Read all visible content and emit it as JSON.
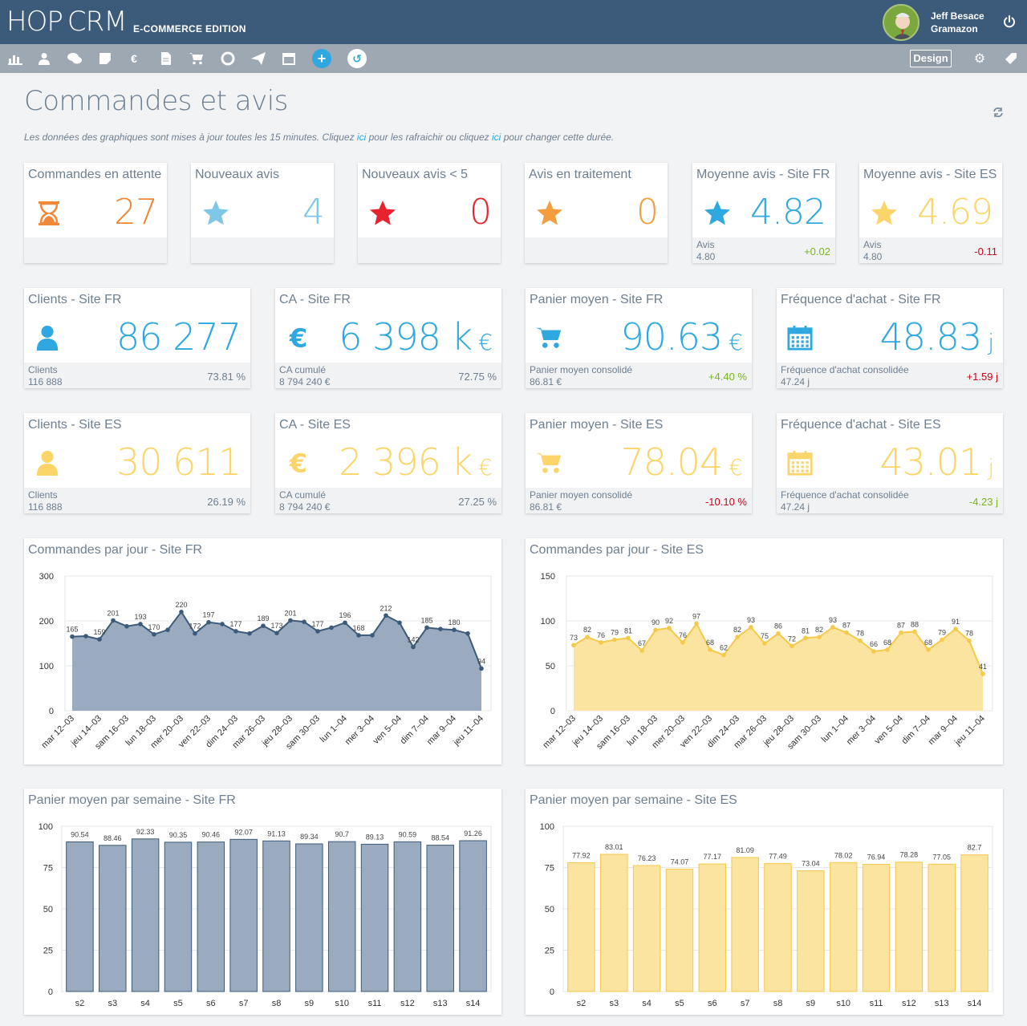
{
  "header": {
    "logo_hop": "HOP",
    "logo_crm": "CRM",
    "edition": "E-COMMERCE EDITION",
    "user_name": "Jeff Besace",
    "company": "Gramazon",
    "design_label": "Design"
  },
  "toolbar_icons": [
    "chart-icon",
    "user-icon",
    "chat-icon",
    "note-icon",
    "euro-icon",
    "document-icon",
    "cart-icon",
    "lifebuoy-icon",
    "send-icon",
    "calendar-icon",
    "add-icon",
    "history-icon"
  ],
  "page": {
    "title": "Commandes et avis",
    "info_1": "Les données des graphiques sont mises à jour toutes les 15 minutes. Cliquez ",
    "info_link1": "ici",
    "info_2": " pour les rafraichir ou cliquez ",
    "info_link2": "ici",
    "info_3": " pour changer cette durée."
  },
  "kpi_row1": [
    {
      "title": "Commandes en attente",
      "value": "27",
      "color": "#f0883a",
      "icon": "hourglass-icon"
    },
    {
      "title": "Nouveaux avis",
      "value": "4",
      "color": "#7ec7e6",
      "icon": "star-icon"
    },
    {
      "title": "Nouveaux avis < 5",
      "value": "0",
      "color": "#e8232f",
      "icon": "star-icon"
    },
    {
      "title": "Avis en traitement",
      "value": "0",
      "color": "#f49d3e",
      "icon": "star-icon"
    },
    {
      "title": "Moyenne avis - Site FR",
      "value": "4.82",
      "color": "#2fa8e0",
      "icon": "star-icon",
      "foot_label": "Avis",
      "foot_value": "4.80",
      "delta": "+0.02",
      "delta_color": "#7ab51d"
    },
    {
      "title": "Moyenne avis - Site ES",
      "value": "4.69",
      "color": "#fbd56a",
      "icon": "star-icon",
      "foot_label": "Avis",
      "foot_value": "4.80",
      "delta": "-0.11",
      "delta_color": "#d0021b"
    }
  ],
  "kpi_fr": [
    {
      "title": "Clients - Site FR",
      "value": "86 277",
      "unit": "",
      "icon": "user-icon",
      "foot_label": "Clients",
      "foot_value": "116 888",
      "delta": "73.81 %",
      "delta_color": "#6e7f90"
    },
    {
      "title": "CA - Site FR",
      "value": "6 398 k",
      "unit": "€",
      "icon": "euro-icon",
      "foot_label": "CA cumulé",
      "foot_value": "8 794 240 €",
      "delta": "72.75 %",
      "delta_color": "#6e7f90"
    },
    {
      "title": "Panier moyen - Site FR",
      "value": "90.63",
      "unit": "€",
      "icon": "cart-icon",
      "foot_label": "Panier moyen consolidé",
      "foot_value": "86.81 €",
      "delta": "+4.40 %",
      "delta_color": "#7ab51d"
    },
    {
      "title": "Fréquence d'achat - Site FR",
      "value": "48.83",
      "unit": "j",
      "icon": "calendar-icon",
      "foot_label": "Fréquence d'achat consolidée",
      "foot_value": "47.24 j",
      "delta": "+1.59 j",
      "delta_color": "#d0021b"
    }
  ],
  "kpi_es": [
    {
      "title": "Clients - Site ES",
      "value": "30 611",
      "unit": "",
      "icon": "user-icon",
      "foot_label": "Clients",
      "foot_value": "116 888",
      "delta": "26.19 %",
      "delta_color": "#6e7f90"
    },
    {
      "title": "CA - Site ES",
      "value": "2 396 k",
      "unit": "€",
      "icon": "euro-icon",
      "foot_label": "CA cumulé",
      "foot_value": "8 794 240 €",
      "delta": "27.25 %",
      "delta_color": "#6e7f90"
    },
    {
      "title": "Panier moyen - Site ES",
      "value": "78.04",
      "unit": "€",
      "icon": "cart-icon",
      "foot_label": "Panier moyen consolidé",
      "foot_value": "86.81 €",
      "delta": "-10.10 %",
      "delta_color": "#d0021b"
    },
    {
      "title": "Fréquence d'achat - Site ES",
      "value": "43.01",
      "unit": "j",
      "icon": "calendar-icon",
      "foot_label": "Fréquence d'achat consolidée",
      "foot_value": "47.24 j",
      "delta": "-4.23 j",
      "delta_color": "#7ab51d"
    }
  ],
  "colors": {
    "fr": "#2fa8e0",
    "es": "#fbd56a",
    "fr_chart_fill": "#9aabbf",
    "fr_chart_line": "#3c5a7a",
    "es_chart_fill": "#fbe3a0",
    "es_chart_line": "#f5c94a"
  },
  "chart_data": [
    {
      "type": "area",
      "title": "Commandes par jour - Site FR",
      "ylim": [
        0,
        300
      ],
      "yticks": [
        0,
        100,
        200,
        300
      ],
      "x_labels": [
        "mar 12–03",
        "jeu 14–03",
        "sam 16–03",
        "lun 18–03",
        "mer 20–03",
        "ven 22–03",
        "dim 24–03",
        "mar 26–03",
        "jeu 28–03",
        "sam 30–03",
        "lun 1–04",
        "mer 3–04",
        "ven 5–04",
        "dim 7–04",
        "mar 9–04",
        "jeu 11–04"
      ],
      "values": [
        165,
        166,
        159,
        201,
        188,
        193,
        170,
        180,
        220,
        172,
        197,
        193,
        177,
        172,
        189,
        173,
        201,
        198,
        177,
        185,
        196,
        168,
        168,
        212,
        196,
        142,
        185,
        182,
        180,
        172,
        94
      ],
      "labels": {
        "0": "165",
        "2": "159",
        "3": "201",
        "5": "193",
        "6": "170",
        "8": "220",
        "9": "172",
        "10": "197",
        "12": "177",
        "14": "189",
        "15": "173",
        "16": "201",
        "18": "177",
        "20": "196",
        "21": "168",
        "23": "212",
        "25": "142",
        "26": "185",
        "28": "180",
        "30": "94"
      }
    },
    {
      "type": "area",
      "title": "Commandes par jour - Site ES",
      "ylim": [
        0,
        150
      ],
      "yticks": [
        0,
        50,
        100,
        150
      ],
      "x_labels": [
        "mar 12–03",
        "jeu 14–03",
        "sam 16–03",
        "lun 18–03",
        "mer 20–03",
        "ven 22–03",
        "dim 24–03",
        "mar 26–03",
        "jeu 28–03",
        "sam 30–03",
        "lun 1–04",
        "mer 3–04",
        "ven 5–04",
        "dim 7–04",
        "mar 9–04",
        "jeu 11–04"
      ],
      "values": [
        73,
        82,
        76,
        79,
        81,
        67,
        90,
        92,
        76,
        97,
        68,
        62,
        82,
        93,
        75,
        86,
        72,
        81,
        82,
        93,
        87,
        78,
        66,
        68,
        87,
        88,
        68,
        79,
        91,
        78,
        41
      ],
      "labels": {
        "0": "73",
        "1": "82",
        "2": "76",
        "3": "79",
        "4": "81",
        "5": "67",
        "6": "90",
        "7": "92",
        "8": "76",
        "9": "97",
        "10": "68",
        "11": "62",
        "12": "82",
        "13": "93",
        "14": "75",
        "15": "86",
        "16": "72",
        "17": "81",
        "18": "82",
        "19": "93",
        "20": "87",
        "21": "78",
        "22": "66",
        "23": "68",
        "24": "87",
        "25": "88",
        "26": "68",
        "27": "79",
        "28": "91",
        "29": "78",
        "30": "41"
      }
    },
    {
      "type": "bar",
      "title": "Panier moyen par semaine - Site FR",
      "ylim": [
        0,
        100
      ],
      "yticks": [
        0,
        25,
        50,
        75,
        100
      ],
      "categories": [
        "s2",
        "s3",
        "s4",
        "s5",
        "s6",
        "s7",
        "s8",
        "s9",
        "s10",
        "s11",
        "s12",
        "s13",
        "s14"
      ],
      "values": [
        90.54,
        88.46,
        92.33,
        90.35,
        90.46,
        92.07,
        91.13,
        89.34,
        90.7,
        89.13,
        90.59,
        88.54,
        91.26
      ]
    },
    {
      "type": "bar",
      "title": "Panier moyen par semaine - Site ES",
      "ylim": [
        0,
        100
      ],
      "yticks": [
        0,
        25,
        50,
        75,
        100
      ],
      "categories": [
        "s2",
        "s3",
        "s4",
        "s5",
        "s6",
        "s7",
        "s8",
        "s9",
        "s10",
        "s11",
        "s12",
        "s13",
        "s14"
      ],
      "values": [
        77.92,
        83.01,
        76.23,
        74.07,
        77.17,
        81.09,
        77.49,
        73.04,
        78.02,
        76.94,
        78.28,
        77.05,
        82.7
      ]
    }
  ]
}
